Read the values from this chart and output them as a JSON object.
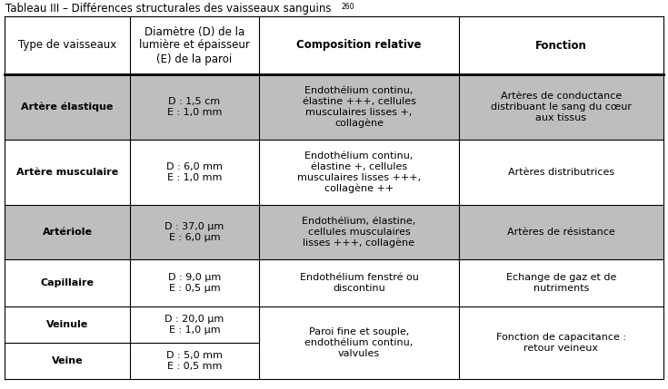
{
  "title": "Tableau III – Différences structurales des vaisseaux sanguins",
  "title_superscript": "260",
  "col_headers": [
    "Type de vaisseaux",
    "Diamètre (D) de la\nlumière et épaisseur\n(E) de la paroi",
    "Composition relative",
    "Fonction"
  ],
  "rows": [
    {
      "type": "Artère élastique",
      "diametre": "D : 1,5 cm\nE : 1,0 mm",
      "composition": "Endothélium continu,\nélastine +++, cellules\nmusculaires lisses +,\ncollagène",
      "fonction": "Artères de conductance\ndistribuant le sang du cœur\naux tissus",
      "shaded": true
    },
    {
      "type": "Artère musculaire",
      "diametre": "D : 6,0 mm\nE : 1,0 mm",
      "composition": "Endothélium continu,\nélastine +, cellules\nmusculaires lisses +++,\ncollagène ++",
      "fonction": "Artères distributrices",
      "shaded": false
    },
    {
      "type": "Artériole",
      "diametre": "D : 37,0 μm\nE : 6,0 μm",
      "composition": "Endothélium, élastine,\ncellules musculaires\nlisses +++, collagène",
      "fonction": "Artères de résistance",
      "shaded": true
    },
    {
      "type": "Capillaire",
      "diametre": "D : 9,0 μm\nE : 0,5 μm",
      "composition": "Endothélium fenstré ou\ndiscontinu",
      "fonction": "Echange de gaz et de\nnutriments",
      "shaded": false
    },
    {
      "type": "Veinule",
      "diametre": "D : 20,0 μm\nE : 1,0 μm",
      "composition": "Paroi fine et souple,\nendothélium continu,\nvalvules",
      "fonction": "Fonction de capacitance :\nretour veineux",
      "shaded": false,
      "merged_comp_with_next": true
    },
    {
      "type": "Veine",
      "diametre": "D : 5,0 mm\nE : 0,5 mm",
      "composition": "",
      "fonction": "",
      "shaded": false,
      "merged_comp_with_prev": true
    }
  ],
  "bg_color": "#ffffff",
  "shaded_color": "#bebebe",
  "text_color": "#000000",
  "font_size_title": 8.5,
  "font_size_header": 8.5,
  "font_size_body": 8.0
}
